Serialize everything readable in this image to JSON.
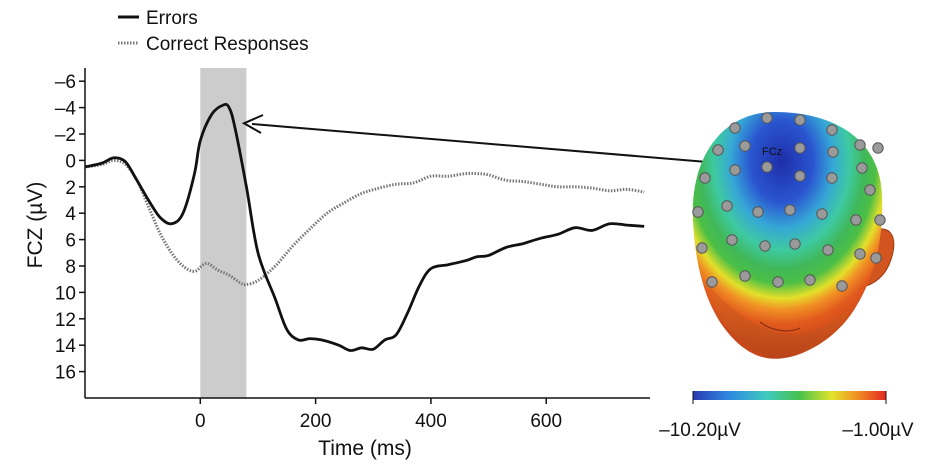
{
  "chart_data": {
    "type": "line",
    "legend_position": "top-left",
    "legend": [
      {
        "label": "Errors",
        "style": "solid",
        "color": "#111111"
      },
      {
        "label": "Correct Responses",
        "style": "dotted",
        "color": "#777777"
      }
    ],
    "xlabel": "Time (ms)",
    "ylabel": "FCZ (µV)",
    "xlim": [
      -200,
      780
    ],
    "ylim": [
      -7,
      18
    ],
    "y_inverted": true,
    "x_ticks": [
      "0",
      "200",
      "400",
      "600"
    ],
    "x_tick_values": [
      0,
      200,
      400,
      600
    ],
    "y_ticks": [
      "–6",
      "–4",
      "–2",
      "0",
      "2",
      "4",
      "6",
      "8",
      "10",
      "12",
      "14",
      "16"
    ],
    "y_tick_values": [
      -6,
      -4,
      -2,
      0,
      2,
      4,
      6,
      8,
      10,
      12,
      14,
      16
    ],
    "shaded_window_ms": [
      0,
      80
    ],
    "shade_color": "#cccccc",
    "grid": false,
    "series": [
      {
        "name": "Errors",
        "x": [
          -200,
          -170,
          -150,
          -130,
          -110,
          -90,
          -70,
          -50,
          -30,
          -10,
          0,
          20,
          40,
          50,
          60,
          80,
          100,
          130,
          150,
          170,
          190,
          210,
          240,
          260,
          280,
          300,
          320,
          340,
          360,
          380,
          400,
          430,
          460,
          480,
          500,
          530,
          560,
          590,
          620,
          650,
          680,
          710,
          740,
          770
        ],
        "y": [
          0.5,
          0.2,
          -0.2,
          0.1,
          1.5,
          3.0,
          4.3,
          4.8,
          4.0,
          1.0,
          -1.5,
          -3.5,
          -4.2,
          -4.0,
          -2.5,
          2.0,
          7.0,
          10.5,
          12.8,
          13.6,
          13.5,
          13.6,
          14.0,
          14.4,
          14.2,
          14.3,
          13.6,
          13.2,
          11.5,
          9.5,
          8.2,
          7.9,
          7.6,
          7.3,
          7.2,
          6.6,
          6.3,
          5.9,
          5.6,
          5.1,
          5.3,
          4.8,
          4.9,
          5.0
        ]
      },
      {
        "name": "Correct Responses",
        "x": [
          -200,
          -170,
          -150,
          -130,
          -110,
          -90,
          -70,
          -50,
          -30,
          -10,
          10,
          30,
          50,
          70,
          80,
          100,
          130,
          160,
          190,
          220,
          250,
          280,
          310,
          340,
          370,
          400,
          430,
          460,
          480,
          500,
          530,
          560,
          590,
          620,
          650,
          680,
          710,
          740,
          770
        ],
        "y": [
          0.5,
          0.3,
          0.0,
          0.3,
          1.5,
          3.5,
          5.5,
          7.0,
          8.0,
          8.4,
          7.8,
          8.3,
          8.7,
          9.3,
          9.4,
          9.1,
          8.0,
          6.5,
          5.2,
          4.0,
          3.2,
          2.5,
          2.1,
          1.8,
          1.7,
          1.2,
          1.2,
          1.0,
          1.0,
          1.1,
          1.5,
          1.6,
          1.8,
          2.0,
          2.0,
          2.1,
          2.3,
          2.2,
          2.4
        ]
      }
    ],
    "annotation": {
      "from_x_ms": 50,
      "from_y": -4,
      "to": "FCz electrode"
    },
    "topomap": {
      "electrode_label": "FCz",
      "colorbar_min_label": "–10.20µV",
      "colorbar_max_label": "–1.00µV",
      "colormap": [
        "#2a3bb0",
        "#2f86e0",
        "#3fc9c0",
        "#46c24e",
        "#e3e32b",
        "#f08a23",
        "#e2281f"
      ]
    }
  }
}
